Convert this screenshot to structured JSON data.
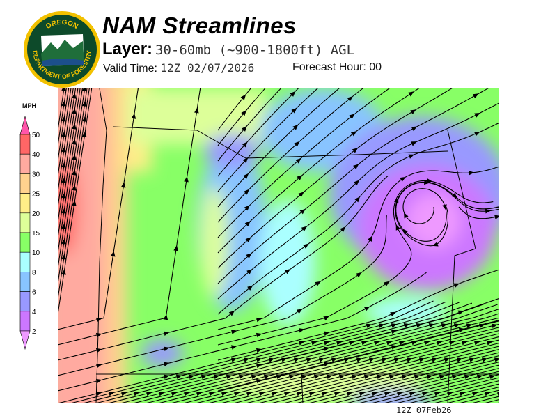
{
  "header": {
    "title": "NAM Streamlines",
    "layer_label": "Layer:",
    "layer_value": "30-60mb (~900-1800ft) AGL",
    "valid_label": "Valid Time:",
    "valid_value": "12Z 02/07/2026",
    "forecast_label": "Forecast Hour:",
    "forecast_value": "00"
  },
  "logo": {
    "text_top": "OREGON",
    "text_bottom": "DEPARTMENT OF FORESTRY"
  },
  "legend": {
    "unit": "MPH",
    "levels": [
      "50",
      "40",
      "30",
      "25",
      "20",
      "15",
      "10",
      "8",
      "6",
      "4",
      "2"
    ],
    "colors": {
      "above_50": "#ff55aa",
      "40_50": "#ff6666",
      "30_40": "#ffaaa0",
      "25_30": "#ffd28e",
      "20_25": "#ffee88",
      "15_20": "#ddff99",
      "10_15": "#88ff66",
      "8_10": "#aaffff",
      "6_8": "#88c4ff",
      "4_6": "#9999ff",
      "2_4": "#cc77ff",
      "below_2": "#ee99ff"
    }
  },
  "footer": {
    "stamp": "12Z 07Feb26"
  }
}
